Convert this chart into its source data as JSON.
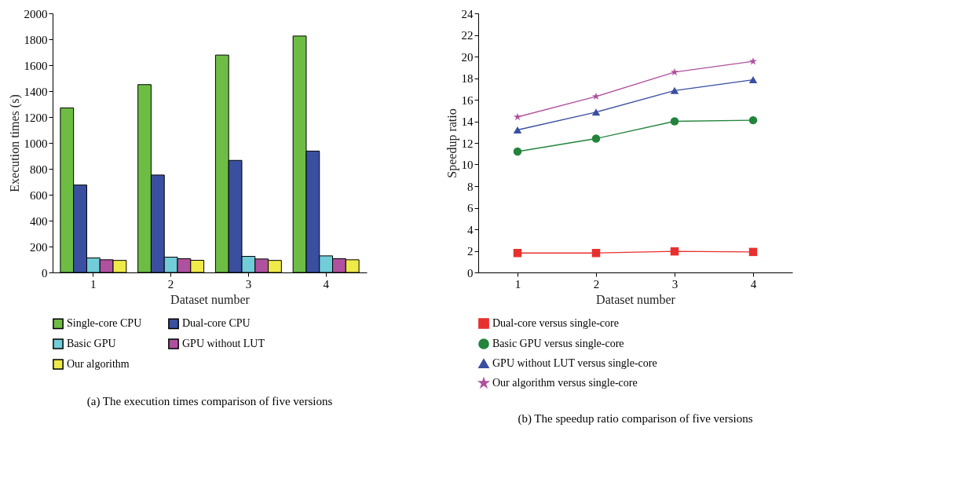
{
  "chart_data": [
    {
      "type": "bar",
      "categories": [
        "1",
        "2",
        "3",
        "4"
      ],
      "xlabel": "Dataset number",
      "ylabel": "Execution times (s)",
      "ylim": [
        0,
        2000
      ],
      "yticks": [
        0,
        200,
        400,
        600,
        800,
        1000,
        1200,
        1400,
        1600,
        1800,
        2000
      ],
      "grid": false,
      "legend": "bottom",
      "series": [
        {
          "name": "Single-core CPU",
          "color": "#6dbd45",
          "values": [
            1270,
            1450,
            1678,
            1825
          ]
        },
        {
          "name": "Dual-core CPU",
          "color": "#3a4fa0",
          "values": [
            675,
            752,
            865,
            937
          ]
        },
        {
          "name": "Basic GPU",
          "color": "#71cdd8",
          "values": [
            112,
            118,
            124,
            128
          ]
        },
        {
          "name": "GPU without LUT",
          "color": "#b0519f",
          "values": [
            98,
            106,
            104,
            106
          ]
        },
        {
          "name": "Our algorithm",
          "color": "#eeea48",
          "values": [
            93,
            94,
            93,
            98
          ]
        }
      ],
      "annotations": [
        "(a)  The execution times comparison of five versions"
      ]
    },
    {
      "type": "line",
      "x": [
        1,
        2,
        3,
        4
      ],
      "xlim": [
        0.5,
        4.5
      ],
      "xticks": [
        1,
        2,
        3,
        4
      ],
      "xlabel": "Dataset number",
      "ylabel": "Speedup ratio",
      "ylim": [
        0,
        24
      ],
      "yticks": [
        0,
        2,
        4,
        6,
        8,
        10,
        12,
        14,
        16,
        18,
        20,
        22,
        24
      ],
      "grid": false,
      "legend": "bottom",
      "line_style": "solid",
      "series": [
        {
          "name": "Dual-core versus single-core",
          "color": "#e8302e",
          "marker": "square",
          "values": [
            1.8,
            1.8,
            1.95,
            1.9
          ]
        },
        {
          "name": "Basic GPU versus single-core",
          "color": "#23843c",
          "marker": "circle",
          "values": [
            11.2,
            12.4,
            14.0,
            14.1
          ]
        },
        {
          "name": "GPU without LUT versus single-core",
          "color": "#3a4fa0",
          "marker": "triangle",
          "values": [
            13.2,
            14.85,
            16.85,
            17.85
          ]
        },
        {
          "name": "Our algorithm versus single-core",
          "color": "#b0519f",
          "marker": "star",
          "values": [
            14.4,
            16.3,
            18.55,
            19.55
          ]
        }
      ],
      "annotations": [
        "(b)  The speedup ratio comparison of five versions"
      ]
    }
  ]
}
